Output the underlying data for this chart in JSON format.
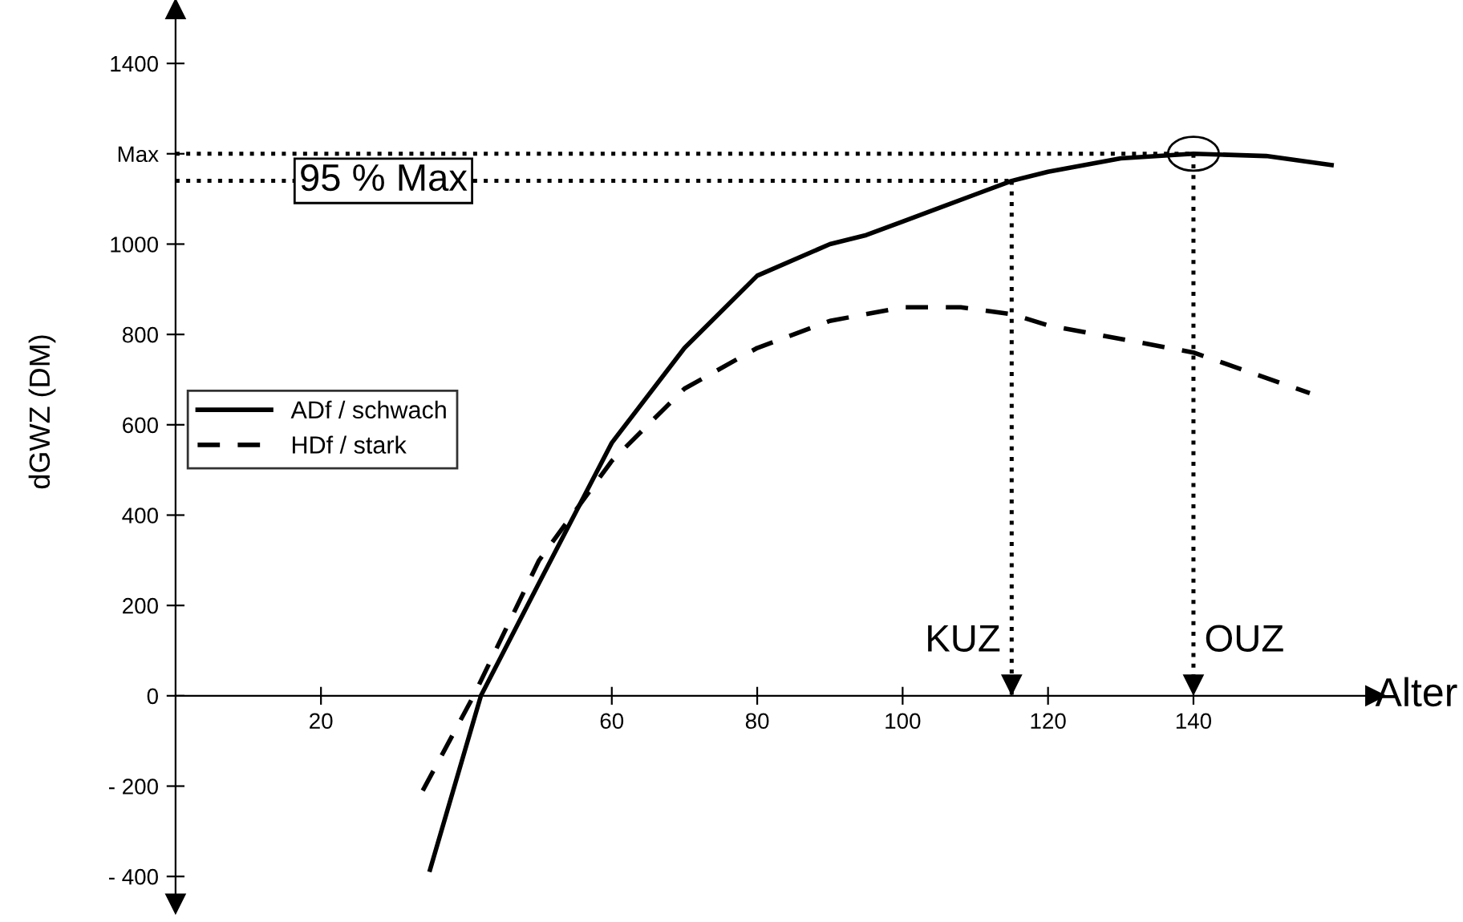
{
  "chart_data": {
    "type": "line",
    "xlabel": "Alter",
    "ylabel": "dGWZ (DM)",
    "xlim": [
      0,
      165
    ],
    "ylim": [
      -460,
      1520
    ],
    "xticks": [
      20,
      60,
      80,
      100,
      120,
      140
    ],
    "yticks": [
      {
        "value": -400,
        "label": "- 400"
      },
      {
        "value": -200,
        "label": "- 200"
      },
      0,
      200,
      400,
      600,
      800,
      1000,
      {
        "value": 1200,
        "label": "Max"
      },
      1400
    ],
    "series": [
      {
        "name": "ADf / schwach",
        "color": "#000000",
        "line_style": "solid",
        "x": [
          35,
          42,
          50,
          60,
          70,
          80,
          90,
          95,
          100,
          110,
          115,
          120,
          130,
          140,
          150,
          159
        ],
        "values": [
          -385,
          0,
          250,
          560,
          770,
          930,
          1000,
          1020,
          1050,
          1110,
          1140,
          1160,
          1190,
          1200,
          1195,
          1175
        ]
      },
      {
        "name": "HDf / stark",
        "color": "#000000",
        "line_style": "dashed",
        "x": [
          34,
          41,
          50,
          60,
          70,
          80,
          90,
          100,
          108,
          115,
          120,
          140,
          156
        ],
        "values": [
          -210,
          0,
          300,
          520,
          680,
          770,
          830,
          860,
          860,
          845,
          820,
          760,
          670
        ]
      }
    ],
    "ref_lines": [
      {
        "axis": "y",
        "value": 1200,
        "label": null,
        "line_style": "dotted",
        "color": "#000000"
      },
      {
        "axis": "y",
        "value": 1140,
        "label": "95 % Max",
        "line_style": "dotted",
        "color": "#000000"
      },
      {
        "axis": "x",
        "value": 115,
        "label": "KUZ",
        "line_style": "dotted",
        "color": "#000000"
      },
      {
        "axis": "x",
        "value": 140,
        "label": "OUZ",
        "line_style": "dotted",
        "color": "#000000"
      }
    ],
    "legend": "center left",
    "grid": false,
    "marker": "none"
  }
}
